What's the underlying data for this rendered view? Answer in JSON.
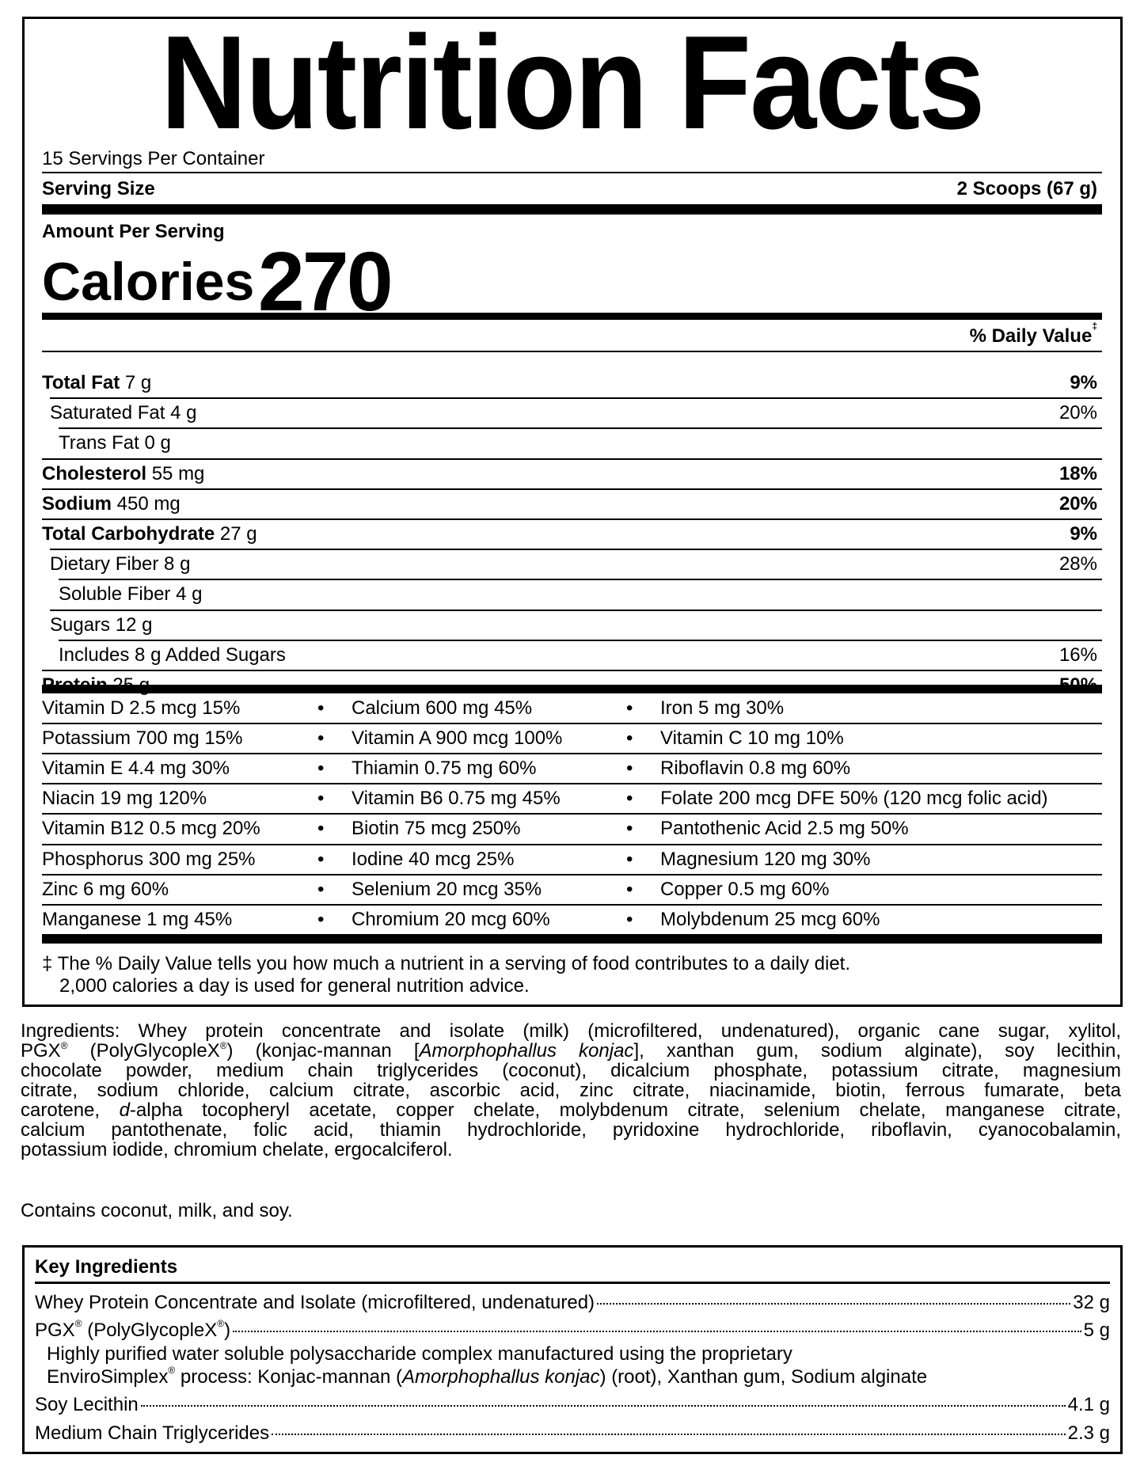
{
  "label": {
    "title": "Nutrition Facts",
    "servings_per_container": "15 Servings Per Container",
    "serving_size_label": "Serving Size",
    "serving_size_value": "2 Scoops (67 g)",
    "amount_per_serving": "Amount Per Serving",
    "calories_label": "Calories",
    "calories_value": "270",
    "daily_value_header": "% Daily Value",
    "daily_value_mark": "‡",
    "nutrients": [
      {
        "name": "Total Fat",
        "amount": "7 g",
        "dv": "9%",
        "bold": true,
        "indent": 0
      },
      {
        "name": "Saturated Fat",
        "amount": "4 g",
        "dv": "20%",
        "bold": false,
        "indent": 1
      },
      {
        "name": "Trans Fat",
        "amount": "0 g",
        "dv": "",
        "bold": false,
        "indent": 2
      },
      {
        "name": "Cholesterol",
        "amount": "55 mg",
        "dv": "18%",
        "bold": true,
        "indent": 0
      },
      {
        "name": "Sodium",
        "amount": "450 mg",
        "dv": "20%",
        "bold": true,
        "indent": 0
      },
      {
        "name": "Total Carbohydrate",
        "amount": "27 g",
        "dv": "9%",
        "bold": true,
        "indent": 0
      },
      {
        "name": "Dietary Fiber",
        "amount": "8 g",
        "dv": "28%",
        "bold": false,
        "indent": 1
      },
      {
        "name": "Soluble Fiber",
        "amount": "4 g",
        "dv": "",
        "bold": false,
        "indent": 2
      },
      {
        "name": "Sugars",
        "amount": "12 g",
        "dv": "",
        "bold": false,
        "indent": 1
      },
      {
        "name": "Includes 8 g Added Sugars",
        "amount": "",
        "dv": "16%",
        "bold": false,
        "indent": 2
      },
      {
        "name": "Protein",
        "amount": "25 g",
        "dv": "50%",
        "bold": true,
        "indent": 0
      }
    ],
    "bullet": "•",
    "vitamins": [
      [
        "Vitamin D 2.5 mcg 15%",
        "Calcium 600 mg 45%",
        "Iron 5 mg 30%"
      ],
      [
        "Potassium 700 mg 15%",
        "Vitamin A 900 mcg 100%",
        "Vitamin C 10 mg 10%"
      ],
      [
        "Vitamin E 4.4 mg 30%",
        "Thiamin 0.75 mg 60%",
        "Riboflavin 0.8 mg 60%"
      ],
      [
        "Niacin 19 mg 120%",
        "Vitamin B6 0.75 mg 45%",
        "Folate 200 mcg DFE 50% (120 mcg folic acid)"
      ],
      [
        "Vitamin B12 0.5 mcg 20%",
        "Biotin 75 mcg 250%",
        "Pantothenic Acid 2.5 mg 50%"
      ],
      [
        "Phosphorus 300 mg 25%",
        "Iodine 40 mcg 25%",
        "Magnesium 120 mg 30%"
      ],
      [
        "Zinc 6 mg 60%",
        "Selenium 20 mcg 35%",
        "Copper 0.5 mg 60%"
      ],
      [
        "Manganese 1 mg 45%",
        "Chromium 20 mcg 60%",
        "Molybdenum 25 mcg 60%"
      ]
    ],
    "footnote_line1": "‡ The % Daily Value tells you how much a nutrient in a serving of food contributes to a daily diet.",
    "footnote_line2": "2,000 calories a day is used for general nutrition advice."
  },
  "ingredients": {
    "lines": [
      [
        {
          "t": "Ingredients: Whey protein concentrate and isolate (milk) (microfiltered, undenatured), organic cane sugar, xylitol,"
        }
      ],
      [
        {
          "t": "PGX"
        },
        {
          "t": "®",
          "sup": true
        },
        {
          "t": " (PolyGlycopleX"
        },
        {
          "t": "®",
          "sup": true
        },
        {
          "t": ") (konjac-mannan ["
        },
        {
          "t": "Amorphophallus konjac",
          "i": true
        },
        {
          "t": "], xanthan gum, sodium alginate), soy lecithin,"
        }
      ],
      [
        {
          "t": "chocolate powder, medium chain triglycerides (coconut), dicalcium phosphate, potassium citrate, magnesium"
        }
      ],
      [
        {
          "t": "citrate, sodium chloride, calcium citrate, ascorbic acid, zinc citrate, niacinamide, biotin, ferrous fumarate, beta"
        }
      ],
      [
        {
          "t": "carotene, "
        },
        {
          "t": "d",
          "i": true
        },
        {
          "t": "-alpha tocopheryl acetate, copper chelate, molybdenum citrate, selenium chelate, manganese citrate,"
        }
      ],
      [
        {
          "t": "calcium pantothenate, folic acid, thiamin hydrochloride, pyridoxine hydrochloride, riboflavin, cyanocobalamin,"
        }
      ],
      [
        {
          "t": "potassium iodide, chromium chelate, ergocalciferol."
        }
      ]
    ],
    "contains": "Contains coconut, milk, and soy."
  },
  "key_ingredients": {
    "title": "Key Ingredients",
    "whey_name": "Whey Protein Concentrate and Isolate (microfiltered, undenatured)",
    "whey_amount": "32 g",
    "pgx_name_a": "PGX",
    "pgx_name_b": " (PolyGlycopleX",
    "pgx_name_c": ")",
    "registered": "®",
    "pgx_amount": "5 g",
    "pgx_desc1": "Highly purified water soluble polysaccharide complex manufactured using the proprietary",
    "pgx_desc2a": "EnviroSimplex",
    "pgx_desc2b": " process: Konjac-mannan (",
    "pgx_desc2c": "Amorphophallus konjac",
    "pgx_desc2d": ") (root), Xanthan gum, Sodium alginate",
    "soy_name": "Soy Lecithin",
    "soy_amount": "4.1 g",
    "mct_name": "Medium Chain Triglycerides",
    "mct_amount": "2.3 g"
  }
}
